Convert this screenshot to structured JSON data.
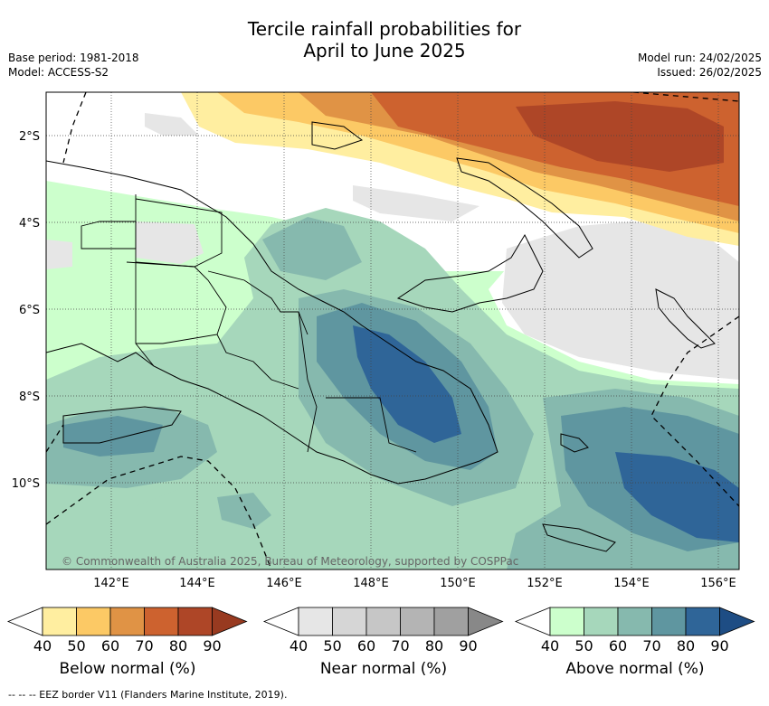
{
  "title_line1": "Tercile rainfall probabilities for",
  "title_line2": "April to June 2025",
  "base_period": "Base period: 1981-2018",
  "model": "Model: ACCESS-S2",
  "model_run": "Model run: 24/02/2025",
  "issued": "Issued: 26/02/2025",
  "copyright": "© Commonwealth of Australia 2025, Bureau of Meteorology, supported by COSPPac",
  "lat_labels": [
    "2°S",
    "4°S",
    "6°S",
    "8°S",
    "10°S"
  ],
  "lon_labels": [
    "142°E",
    "144°E",
    "146°E",
    "148°E",
    "150°E",
    "152°E",
    "154°E",
    "156°E"
  ],
  "colorbars": [
    {
      "label": "Below normal (%)",
      "ticks": [
        "40",
        "50",
        "60",
        "70",
        "80",
        "90"
      ],
      "colors": [
        "#ffeea0",
        "#fcc965",
        "#e09345",
        "#cd622f",
        "#ae4627",
        "#983a20"
      ]
    },
    {
      "label": "Near normal (%)",
      "ticks": [
        "40",
        "50",
        "60",
        "70",
        "80",
        "90"
      ],
      "colors": [
        "#e6e6e6",
        "#d6d6d6",
        "#c6c6c6",
        "#b4b4b4",
        "#a0a0a0",
        "#888888"
      ]
    },
    {
      "label": "Above normal (%)",
      "ticks": [
        "40",
        "50",
        "60",
        "70",
        "80",
        "90"
      ],
      "colors": [
        "#ccffcc",
        "#a6d7bb",
        "#86b9ae",
        "#5f96a0",
        "#2f6598",
        "#1e4d84"
      ]
    }
  ],
  "footer": "--  --  -- EEZ border V11 (Flanders Marine Institute, 2019)."
}
